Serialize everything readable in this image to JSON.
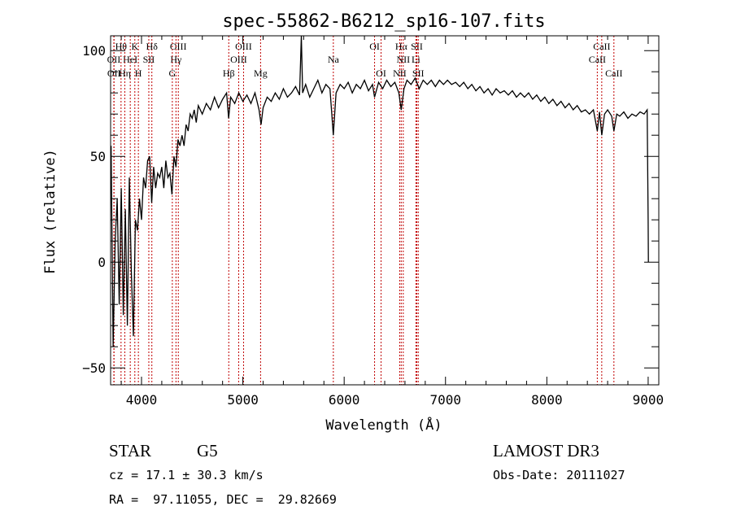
{
  "chart_data": {
    "type": "line",
    "title": "spec-55862-B6212_sp16-107.fits",
    "xlabel": "Wavelength (Å)",
    "ylabel": "Flux (relative)",
    "xlim": [
      3695,
      9105
    ],
    "ylim": [
      -58,
      107
    ],
    "x_ticks": [
      4000,
      5000,
      6000,
      7000,
      8000,
      9000
    ],
    "y_ticks": [
      -50,
      0,
      50,
      100
    ],
    "grid": false,
    "series": [
      {
        "name": "spectrum",
        "color": "#000000",
        "x": [
          3700,
          3720,
          3740,
          3760,
          3780,
          3800,
          3820,
          3840,
          3860,
          3880,
          3900,
          3920,
          3940,
          3960,
          3980,
          4000,
          4020,
          4040,
          4060,
          4080,
          4100,
          4120,
          4140,
          4160,
          4180,
          4200,
          4220,
          4240,
          4260,
          4280,
          4300,
          4320,
          4340,
          4360,
          4380,
          4400,
          4420,
          4440,
          4460,
          4480,
          4500,
          4520,
          4540,
          4560,
          4600,
          4640,
          4680,
          4720,
          4760,
          4800,
          4840,
          4860,
          4880,
          4920,
          4960,
          5000,
          5040,
          5080,
          5120,
          5160,
          5180,
          5200,
          5240,
          5280,
          5320,
          5360,
          5400,
          5440,
          5480,
          5520,
          5560,
          5577,
          5590,
          5620,
          5660,
          5700,
          5740,
          5780,
          5820,
          5860,
          5893,
          5920,
          5960,
          6000,
          6040,
          6080,
          6120,
          6160,
          6200,
          6240,
          6280,
          6300,
          6340,
          6380,
          6420,
          6460,
          6500,
          6540,
          6563,
          6590,
          6620,
          6660,
          6700,
          6740,
          6780,
          6820,
          6860,
          6900,
          6940,
          6980,
          7020,
          7060,
          7100,
          7140,
          7180,
          7220,
          7260,
          7300,
          7340,
          7380,
          7420,
          7460,
          7500,
          7540,
          7580,
          7620,
          7660,
          7700,
          7740,
          7780,
          7820,
          7860,
          7900,
          7940,
          7980,
          8020,
          8060,
          8100,
          8140,
          8180,
          8220,
          8260,
          8300,
          8340,
          8380,
          8420,
          8460,
          8498,
          8520,
          8542,
          8570,
          8600,
          8640,
          8662,
          8690,
          8720,
          8760,
          8800,
          8840,
          8880,
          8920,
          8960,
          8990,
          9000,
          9002
        ],
        "y": [
          55,
          -40,
          10,
          30,
          -20,
          35,
          -25,
          25,
          -30,
          40,
          -5,
          -35,
          20,
          15,
          30,
          20,
          40,
          35,
          48,
          50,
          28,
          45,
          35,
          42,
          40,
          45,
          35,
          48,
          40,
          42,
          32,
          50,
          45,
          58,
          55,
          60,
          55,
          65,
          62,
          70,
          68,
          72,
          66,
          74,
          70,
          75,
          72,
          78,
          73,
          77,
          80,
          68,
          78,
          75,
          80,
          76,
          79,
          75,
          80,
          72,
          65,
          73,
          78,
          76,
          80,
          77,
          82,
          78,
          80,
          83,
          79,
          107,
          80,
          84,
          78,
          82,
          86,
          80,
          84,
          82,
          60,
          80,
          84,
          82,
          85,
          80,
          84,
          82,
          86,
          81,
          84,
          78,
          85,
          82,
          86,
          83,
          85,
          80,
          72,
          82,
          86,
          84,
          87,
          82,
          86,
          84,
          86,
          83,
          86,
          84,
          86,
          84,
          85,
          83,
          85,
          82,
          84,
          81,
          83,
          80,
          82,
          79,
          82,
          80,
          81,
          79,
          81,
          78,
          80,
          78,
          80,
          77,
          79,
          76,
          78,
          75,
          77,
          74,
          76,
          73,
          75,
          72,
          74,
          71,
          72,
          70,
          72,
          62,
          71,
          60,
          70,
          72,
          69,
          62,
          70,
          69,
          71,
          68,
          70,
          69,
          71,
          70,
          72,
          20,
          0
        ]
      }
    ],
    "line_markers": [
      {
        "label": "Hθ",
        "wavelength": 3798
      },
      {
        "label": "K",
        "wavelength": 3934
      },
      {
        "label": "Hδ",
        "wavelength": 4102
      },
      {
        "label": "OIII",
        "wavelength": 4363
      },
      {
        "label": "OIII",
        "wavelength": 5007
      },
      {
        "label": "OI",
        "wavelength": 6300
      },
      {
        "label": "Hα",
        "wavelength": 6563
      },
      {
        "label": "SII",
        "wavelength": 6717
      },
      {
        "label": "CaII",
        "wavelength": 8542
      },
      {
        "label": "OII",
        "wavelength": 3727
      },
      {
        "label": "HeI",
        "wavelength": 3889
      },
      {
        "label": "SII",
        "wavelength": 4072
      },
      {
        "label": "Hγ",
        "wavelength": 4340
      },
      {
        "label": "OIII",
        "wavelength": 4959
      },
      {
        "label": "Na",
        "wavelength": 5893
      },
      {
        "label": "NII",
        "wavelength": 6583
      },
      {
        "label": "Li",
        "wavelength": 6708
      },
      {
        "label": "CaII",
        "wavelength": 8498
      },
      {
        "label": "OII",
        "wavelength": 3729
      },
      {
        "label": "Hη",
        "wavelength": 3835
      },
      {
        "label": "H",
        "wavelength": 3969
      },
      {
        "label": "G",
        "wavelength": 4304
      },
      {
        "label": "Hβ",
        "wavelength": 4861
      },
      {
        "label": "Mg",
        "wavelength": 5175
      },
      {
        "label": "OI",
        "wavelength": 6364
      },
      {
        "label": "NII",
        "wavelength": 6548
      },
      {
        "label": "SII",
        "wavelength": 6731
      },
      {
        "label": "CaII",
        "wavelength": 8662
      }
    ],
    "marker_color": "#c00000"
  },
  "info": {
    "class": "STAR",
    "subclass": "G5",
    "survey": "LAMOST DR3",
    "cz": "cz = 17.1 ± 30.3 km/s",
    "obs_date": "Obs-Date: 20111027",
    "coords": "RA =  97.11055, DEC =  29.82669"
  }
}
